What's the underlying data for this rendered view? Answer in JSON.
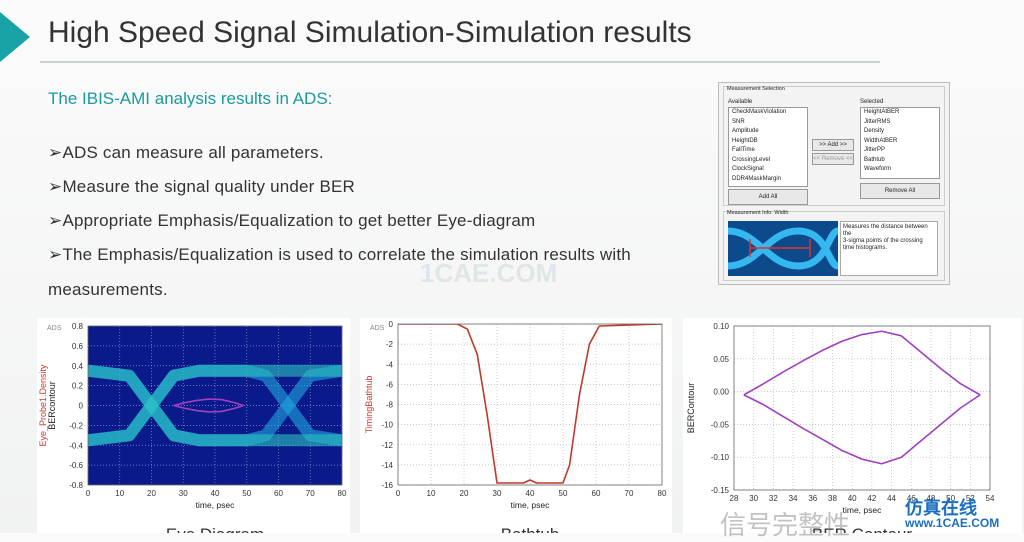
{
  "header": {
    "title": "High Speed Signal Simulation-Simulation results"
  },
  "subtitle": "The IBIS-AMI analysis results in ADS:",
  "bullets": [
    "➢ADS can measure all parameters.",
    "➢Measure the signal quality under BER",
    "➢Appropriate Emphasis/Equalization  to get better Eye-diagram",
    "➢The Emphasis/Equalization  is used to correlate the simulation results with",
    "measurements."
  ],
  "dialog": {
    "title": "Measurement Selection",
    "available_label": "Available",
    "available": [
      "CheckMaskViolation",
      "SNR",
      "Amplitude",
      "HeightDB",
      "FallTime",
      "CrossingLevel",
      "ClockSignal",
      "DDR4MaskMargin"
    ],
    "selected_label": "Selected",
    "selected": [
      "HeightAtBER",
      "JitterRMS",
      "Density",
      "WidthAtBER",
      "JitterPP",
      "Bathtub",
      "Waveform"
    ],
    "add_button": ">> Add >>",
    "remove_button": "<< Remove <<",
    "add_all": "Add All",
    "remove_all": "Remove All",
    "info_title": "Measurement Info: Width",
    "info_text": [
      "Measures the distance between the",
      "3-sigma points of the crossing",
      "time histograms."
    ]
  },
  "watermarks": {
    "center": "1CAE.COM",
    "bottom": "信号完整性",
    "brand": "仿真在线",
    "url": "www.1CAE.COM"
  },
  "chart_data": [
    {
      "type": "eye",
      "label": "ADS",
      "caption": "Eye Diagram",
      "xlabel": "time, psec",
      "ylabel": "Eye_Probe1.Density",
      "ylabel2": "BERcontour",
      "x": [
        0,
        13,
        20,
        27,
        35,
        50,
        56,
        63,
        70,
        80
      ],
      "series": [
        {
          "color": "#1fa6e0",
          "values": [
            0.35,
            0.3,
            0,
            -0.3,
            -0.35,
            -0.35,
            -0.3,
            0,
            0.3,
            0.35
          ]
        },
        {
          "color": "#1fa6e0",
          "values": [
            -0.35,
            -0.3,
            0,
            0.3,
            0.35,
            0.35,
            0.3,
            0,
            -0.3,
            -0.35
          ]
        },
        {
          "color": "#2bc4c0",
          "values": [
            0.35,
            0.3,
            0,
            -0.3,
            -0.35,
            -0.35,
            -0.35,
            -0.35,
            -0.35,
            -0.35
          ]
        },
        {
          "color": "#2bc4c0",
          "values": [
            -0.35,
            -0.3,
            0,
            0.3,
            0.35,
            0.35,
            0.35,
            0.35,
            0.35,
            0.35
          ]
        },
        {
          "color": "#a040c0",
          "x": [
            27,
            30,
            34,
            38,
            42,
            46,
            49
          ],
          "values": [
            0,
            0.025,
            0.05,
            0.065,
            0.06,
            0.03,
            0
          ]
        },
        {
          "color": "#a040c0",
          "x": [
            27,
            30,
            34,
            38,
            42,
            46,
            49
          ],
          "values": [
            0,
            -0.025,
            -0.05,
            -0.065,
            -0.06,
            -0.03,
            0
          ]
        }
      ],
      "xlim": [
        0,
        80
      ],
      "xticks": [
        0,
        10,
        20,
        30,
        40,
        50,
        60,
        70,
        80
      ],
      "ylim": [
        -0.8,
        0.8
      ],
      "yticks": [
        -0.8,
        -0.6,
        -0.4,
        -0.2,
        0.0,
        0.2,
        0.4,
        0.6,
        0.8
      ],
      "grid": true
    },
    {
      "type": "line",
      "label": "ADS",
      "caption": "Bathtub",
      "xlabel": "time, psec",
      "ylabel": "TimingBathtub",
      "x": [
        0,
        18,
        21,
        24,
        27,
        30,
        38,
        40,
        42,
        50,
        52,
        55,
        58,
        61,
        80
      ],
      "series": [
        {
          "color": "#c0392b",
          "values": [
            0,
            0,
            -0.5,
            -3,
            -9,
            -15.8,
            -15.8,
            -15.5,
            -15.8,
            -15.8,
            -14,
            -7,
            -2,
            -0.2,
            0
          ]
        }
      ],
      "xlim": [
        0,
        80
      ],
      "xticks": [
        0,
        10,
        20,
        30,
        40,
        50,
        60,
        70,
        80
      ],
      "ylim": [
        -16,
        0
      ],
      "yticks": [
        -16,
        -14,
        -12,
        -10,
        -8,
        -6,
        -4,
        -2,
        0
      ],
      "grid": true
    },
    {
      "type": "line",
      "caption": "BER Contour",
      "xlabel": "time, psec",
      "ylabel": "BERContour",
      "x": [
        29,
        31,
        33,
        35,
        37,
        39,
        41,
        43,
        45,
        47,
        49,
        51,
        53
      ],
      "series": [
        {
          "color": "#a040c0",
          "values": [
            -0.005,
            0.012,
            0.03,
            0.047,
            0.063,
            0.077,
            0.087,
            0.092,
            0.085,
            0.06,
            0.035,
            0.012,
            -0.005
          ]
        },
        {
          "color": "#a040c0",
          "values": [
            -0.005,
            -0.02,
            -0.038,
            -0.056,
            -0.073,
            -0.09,
            -0.103,
            -0.11,
            -0.1,
            -0.075,
            -0.05,
            -0.025,
            -0.005
          ]
        }
      ],
      "xlim": [
        28,
        54
      ],
      "xticks": [
        28,
        30,
        32,
        34,
        36,
        38,
        40,
        42,
        44,
        46,
        48,
        50,
        52,
        54
      ],
      "ylim": [
        -0.15,
        0.1
      ],
      "yticks": [
        {
          "value": -0.15,
          "label": "-0.15"
        },
        {
          "value": -0.1,
          "label": "-0.10"
        },
        {
          "value": -0.05,
          "label": "-0.05"
        },
        {
          "value": 0,
          "label": "0.00"
        },
        {
          "value": 0.05,
          "label": "0.05"
        },
        {
          "value": 0.1,
          "label": "0.10"
        }
      ],
      "grid": true
    }
  ]
}
